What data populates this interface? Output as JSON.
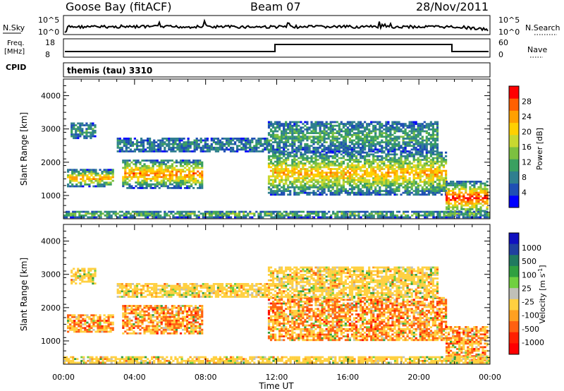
{
  "header": {
    "station": "Goose Bay (fitACF)",
    "beam": "Beam 07",
    "date": "28/Nov/2011"
  },
  "noise_panel": {
    "left_label": "N.Sky",
    "right_label": "N.Search",
    "left_ticks": [
      "10^5",
      "10^0"
    ],
    "right_ticks": [
      "10^5",
      "10^0"
    ]
  },
  "freq_panel": {
    "left_label_line1": "Freq.",
    "left_label_line2": "[MHz]",
    "right_label": "Nave",
    "left_ticks": [
      "18",
      "8"
    ],
    "right_ticks": [
      "60",
      "0"
    ]
  },
  "cpid": {
    "label": "CPID",
    "value": "themis (tau) 3310"
  },
  "chart_data": [
    {
      "type": "heatmap",
      "title": "",
      "ylabel": "Slant Range [km]",
      "xlabel": "",
      "x_ticks": [
        "00:00",
        "04:00",
        "08:00",
        "12:00",
        "16:00",
        "20:00",
        "00:00"
      ],
      "y_ticks": [
        1000,
        2000,
        3000,
        4000
      ],
      "ylim": [
        300,
        4500
      ],
      "colorbar": {
        "label": "Power [dB]",
        "ticks": [
          "4",
          "8",
          "12",
          "16",
          "20",
          "24",
          "28"
        ],
        "colors": [
          "#0000ff",
          "#1f4fb4",
          "#2f7f8f",
          "#3aa060",
          "#7cc040",
          "#c8d830",
          "#ffd000",
          "#ffa000",
          "#ff6000",
          "#ff0000"
        ]
      }
    },
    {
      "type": "heatmap",
      "title": "",
      "ylabel": "Slant Range [km]",
      "xlabel": "Time UT",
      "x_ticks": [
        "00:00",
        "04:00",
        "08:00",
        "12:00",
        "16:00",
        "20:00",
        "00:00"
      ],
      "y_ticks": [
        1000,
        2000,
        3000,
        4000
      ],
      "ylim": [
        300,
        4500
      ],
      "colorbar": {
        "label": "Velocity [m s",
        "label_sup": "-1",
        "label_end": "]",
        "ticks": [
          "1000",
          "500",
          "100",
          "25",
          "-25",
          "-100",
          "-500",
          "-1000"
        ],
        "colors": [
          "#1010c0",
          "#2040a0",
          "#207a60",
          "#30a040",
          "#70d040",
          "#c0c0b8",
          "#ffd040",
          "#ffa020",
          "#ff6010",
          "#ff2000",
          "#ff0000"
        ]
      }
    }
  ]
}
